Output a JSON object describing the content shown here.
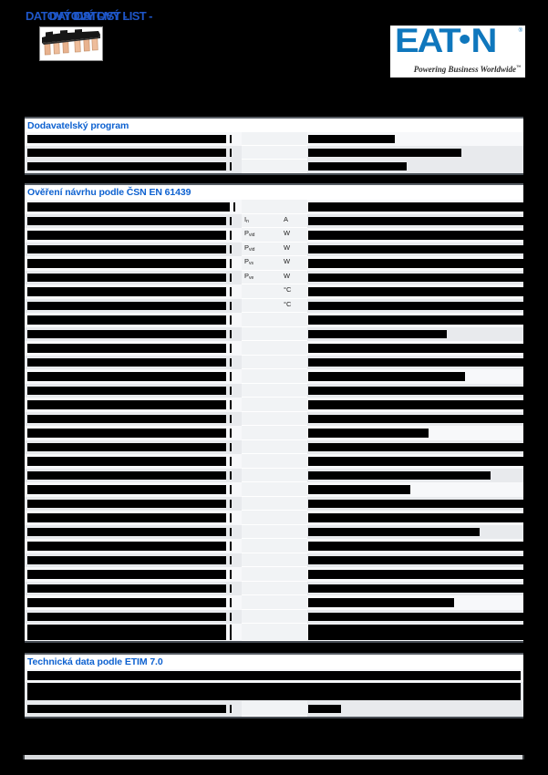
{
  "page_title": "DATOVÝ LIST -",
  "logo": {
    "wordmark_left": "EAT",
    "wordmark_right": "N",
    "registered": "®",
    "tagline": "Powering Business Worldwide",
    "trademark": "™"
  },
  "colors": {
    "accent_heading_blue": "#0d61d0",
    "title_blue": "#1e56c8",
    "eaton_blue": "#0f77bd",
    "row_shade_gray": "#e8eaed",
    "middle_column_gray": "#f1f3f5",
    "redaction_bar": "#000000",
    "page_background": "#000000"
  },
  "sections": [
    {
      "id": "supply",
      "title": "Dodavatelský program",
      "rows": [
        {
          "h": 15,
          "lw": 218,
          "dw": 95,
          "sh": 0
        },
        {
          "h": 15,
          "lw": 218,
          "dw": 168,
          "sh": 1
        },
        {
          "h": 15,
          "lw": 218,
          "dw": 108,
          "sh": 1
        }
      ]
    },
    {
      "id": "design",
      "title": "Ověření návrhu podle ČSN EN 61439",
      "rows": [
        {
          "h": 15.5,
          "lw": 222,
          "dw": 236,
          "sh": 0
        },
        {
          "h": 15.5,
          "lw": 218,
          "dw": 236,
          "sym": [
            "I",
            "n"
          ],
          "unit": "A",
          "sh": 1
        },
        {
          "h": 15.5,
          "lw": 218,
          "dw": 236,
          "sym": [
            "P",
            "vid"
          ],
          "unit": "W",
          "sh": 0
        },
        {
          "h": 15.5,
          "lw": 218,
          "dw": 236,
          "sym": [
            "P",
            "vid"
          ],
          "unit": "W",
          "sh": 1
        },
        {
          "h": 15.5,
          "lw": 218,
          "dw": 236,
          "sym": [
            "P",
            "vs"
          ],
          "unit": "W",
          "sh": 0
        },
        {
          "h": 15.5,
          "lw": 218,
          "dw": 236,
          "sym": [
            "P",
            "ve"
          ],
          "unit": "W",
          "sh": 1
        },
        {
          "h": 15.5,
          "lw": 218,
          "dw": 236,
          "unit": "°C",
          "sh": 0
        },
        {
          "h": 15.5,
          "lw": 218,
          "dw": 236,
          "unit": "°C",
          "sh": 1
        },
        {
          "h": 15.5,
          "lw": 218,
          "dw": 236,
          "sh": 0
        },
        {
          "h": 15.5,
          "lw": 218,
          "dw": 152,
          "sh": 1
        },
        {
          "h": 15.5,
          "lw": 218,
          "dw": 236,
          "sh": 0
        },
        {
          "h": 15.5,
          "lw": 218,
          "dw": 236,
          "sh": 1
        },
        {
          "h": 15.5,
          "lw": 218,
          "dw": 172,
          "sh": 0
        },
        {
          "h": 15.5,
          "lw": 218,
          "dw": 236,
          "sh": 1
        },
        {
          "h": 15.5,
          "lw": 218,
          "dw": 236,
          "sh": 0
        },
        {
          "h": 15.5,
          "lw": 218,
          "dw": 236,
          "sh": 1
        },
        {
          "h": 15.5,
          "lw": 218,
          "dw": 132,
          "sh": 0
        },
        {
          "h": 15.5,
          "lw": 218,
          "dw": 236,
          "sh": 1
        },
        {
          "h": 15.5,
          "lw": 218,
          "dw": 236,
          "sh": 0
        },
        {
          "h": 15.5,
          "lw": 218,
          "dw": 200,
          "sh": 1
        },
        {
          "h": 15.5,
          "lw": 218,
          "dw": 112,
          "sh": 0
        },
        {
          "h": 15.5,
          "lw": 218,
          "dw": 236,
          "sh": 1
        },
        {
          "h": 15.5,
          "lw": 218,
          "dw": 236,
          "sh": 0
        },
        {
          "h": 15.5,
          "lw": 218,
          "dw": 188,
          "sh": 1
        },
        {
          "h": 15.5,
          "lw": 218,
          "dw": 236,
          "sh": 0
        },
        {
          "h": 15.5,
          "lw": 218,
          "dw": 236,
          "sh": 1
        },
        {
          "h": 15.5,
          "lw": 218,
          "dw": 236,
          "sh": 0
        },
        {
          "h": 15.5,
          "lw": 218,
          "dw": 236,
          "sh": 1
        },
        {
          "h": 15.5,
          "lw": 218,
          "dw": 160,
          "sh": 0
        },
        {
          "h": 15.5,
          "lw": 218,
          "dw": 236,
          "sh": 1
        },
        {
          "h": 19,
          "bh": 17,
          "lw": 218,
          "dw": 236,
          "sh": 0
        }
      ]
    },
    {
      "id": "etim",
      "title": "Technická data podle ETIM 7.0",
      "rows": [
        {
          "t": "f",
          "h": 14,
          "dw": 541,
          "sh": 0
        },
        {
          "t": "f",
          "h": 21,
          "bh": 19,
          "dw": 541,
          "sh": 1
        },
        {
          "h": 17,
          "lw": 218,
          "dw": 36,
          "sh": 1
        }
      ]
    }
  ]
}
